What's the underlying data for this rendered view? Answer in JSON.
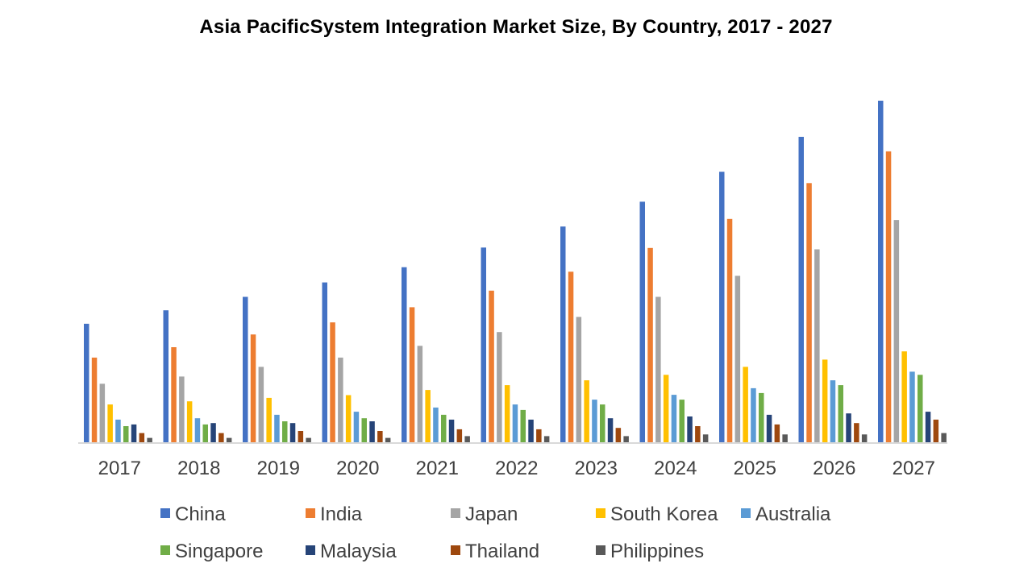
{
  "chart_data": {
    "type": "bar",
    "title": "Asia PacificSystem Integration Market Size, By Country,  2017  - 2027",
    "xlabel": "",
    "ylabel": "",
    "ylim": [
      0,
      100
    ],
    "y_axis_visible": false,
    "grid": false,
    "legend_placement": "bottom",
    "categories": [
      "2017",
      "2018",
      "2019",
      "2020",
      "2021",
      "2022",
      "2023",
      "2024",
      "2025",
      "2026",
      "2027"
    ],
    "series": [
      {
        "name": "China",
        "color": "#4472C4",
        "values": [
          34.6,
          38.5,
          42.4,
          46.6,
          51.0,
          56.7,
          62.8,
          70.0,
          78.7,
          88.8,
          99.3
        ]
      },
      {
        "name": "India",
        "color": "#ED7D31",
        "values": [
          24.8,
          27.8,
          31.5,
          35.0,
          39.4,
          44.2,
          49.7,
          56.6,
          65.0,
          75.4,
          84.6
        ]
      },
      {
        "name": "Japan",
        "color": "#A5A5A5",
        "values": [
          17.2,
          19.3,
          22.1,
          24.8,
          28.2,
          32.2,
          36.6,
          42.4,
          48.5,
          56.2,
          64.7
        ]
      },
      {
        "name": "South Korea",
        "color": "#FFC000",
        "values": [
          11.2,
          12.1,
          13.1,
          13.9,
          15.4,
          16.8,
          18.2,
          19.8,
          22.1,
          24.2,
          26.6
        ]
      },
      {
        "name": "Australia",
        "color": "#5B9BD5",
        "values": [
          6.8,
          7.2,
          8.2,
          9.1,
          10.3,
          11.2,
          12.6,
          14.0,
          15.9,
          18.2,
          20.7
        ]
      },
      {
        "name": "Singapore",
        "color": "#70AD47",
        "values": [
          4.9,
          5.4,
          6.3,
          7.2,
          8.2,
          9.6,
          11.2,
          12.6,
          14.5,
          16.8,
          19.8
        ]
      },
      {
        "name": "Malaysia",
        "color": "#264478",
        "values": [
          5.4,
          5.8,
          5.8,
          6.3,
          6.8,
          6.8,
          7.2,
          7.7,
          8.2,
          8.6,
          9.1
        ]
      },
      {
        "name": "Thailand",
        "color": "#9E480E",
        "values": [
          2.9,
          2.9,
          3.5,
          3.5,
          4.0,
          4.0,
          4.4,
          4.9,
          5.4,
          5.8,
          6.8
        ]
      },
      {
        "name": "Philippines",
        "color": "#595959",
        "values": [
          1.5,
          1.5,
          1.5,
          1.5,
          2.0,
          2.0,
          2.0,
          2.5,
          2.5,
          2.5,
          2.9
        ]
      }
    ]
  }
}
